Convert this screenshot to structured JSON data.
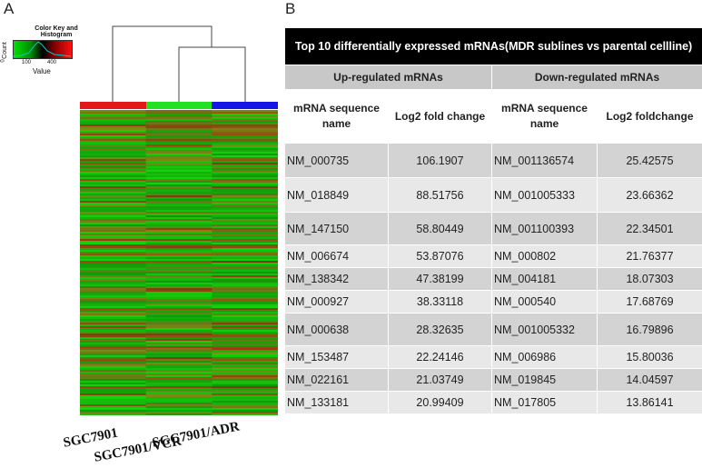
{
  "panels": {
    "a": "A",
    "b": "B"
  },
  "color_key": {
    "title": "Color Key and Histogram",
    "count_label": "Count",
    "count_tick": "0",
    "ticks": [
      "100",
      "400"
    ],
    "value_label": "Value",
    "colors": {
      "low": "#00e000",
      "mid": "#000000",
      "high": "#ff1010"
    }
  },
  "samples": [
    {
      "label": "SGC7901",
      "color": "#e31818"
    },
    {
      "label": "SGC7901/VCR",
      "color": "#22e022"
    },
    {
      "label": "SGC7901/ADR",
      "color": "#1515e6"
    }
  ],
  "table": {
    "title": "Top 10 differentially expressed mRNAs(MDR sublines vs parental cellline)",
    "up_header": "Up-regulated mRNAs",
    "down_header": "Down-regulated mRNAs",
    "col_seq": "mRNA sequence name",
    "col_fold_up": "Log2 fold change",
    "col_fold_down": "Log2 foldchange",
    "rows": [
      {
        "up_id": "NM_000735",
        "up_val": "106.1907",
        "down_id": "NM_001136574",
        "down_val": "25.42575"
      },
      {
        "up_id": "NM_018849",
        "up_val": "88.51756",
        "down_id": "NM_001005333",
        "down_val": "23.66362"
      },
      {
        "up_id": "NM_147150",
        "up_val": "58.80449",
        "down_id": "NM_001100393",
        "down_val": "22.34501"
      },
      {
        "up_id": "NM_006674",
        "up_val": "53.87076",
        "down_id": "NM_000802",
        "down_val": "21.76377"
      },
      {
        "up_id": "NM_138342",
        "up_val": "47.38199",
        "down_id": "NM_004181",
        "down_val": "18.07303"
      },
      {
        "up_id": "NM_000927",
        "up_val": "38.33118",
        "down_id": "NM_000540",
        "down_val": "17.68769"
      },
      {
        "up_id": "NM_000638",
        "up_val": "28.32635",
        "down_id": "NM_001005332",
        "down_val": "16.79896"
      },
      {
        "up_id": "NM_153487",
        "up_val": "22.24146",
        "down_id": "NM_006986",
        "down_val": "15.80036"
      },
      {
        "up_id": "NM_022161",
        "up_val": "21.03749",
        "down_id": "NM_019845",
        "down_val": "14.04597"
      },
      {
        "up_id": "NM_133181",
        "up_val": "20.99409",
        "down_id": "NM_017805",
        "down_val": "13.86141"
      }
    ]
  }
}
